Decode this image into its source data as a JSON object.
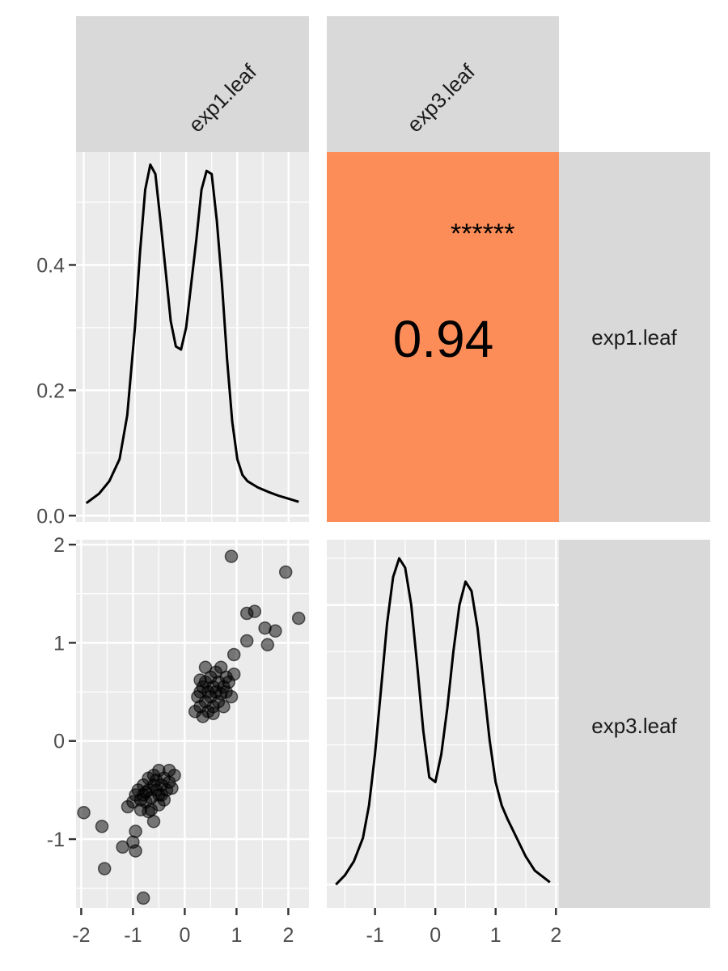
{
  "chart_data": {
    "type": "scatter",
    "variables": [
      "exp1.leaf",
      "exp3.leaf"
    ],
    "colors": {
      "strip": "#d9d9d9",
      "panel": "#ebebeb",
      "grid": "#ffffff",
      "correlation_fill": "#fc8d59",
      "line": "#000000",
      "point": "#000000",
      "axis_text": "#4d4d4d"
    },
    "diag_exp1": {
      "xlim": [
        -2.15,
        2.4
      ],
      "ylim": [
        -0.01,
        0.58
      ],
      "yticks": [
        "0.0",
        "0.2",
        "0.4"
      ],
      "yticks_values": [
        0,
        0.2,
        0.4
      ],
      "xgrid": [
        -2,
        -1,
        0,
        1,
        2
      ],
      "x": [
        -1.95,
        -1.7,
        -1.5,
        -1.3,
        -1.15,
        -1.0,
        -0.9,
        -0.8,
        -0.7,
        -0.6,
        -0.5,
        -0.4,
        -0.3,
        -0.2,
        -0.1,
        0.0,
        0.1,
        0.2,
        0.3,
        0.4,
        0.5,
        0.6,
        0.7,
        0.8,
        0.9,
        1.0,
        1.1,
        1.2,
        1.4,
        1.6,
        1.8,
        2.0,
        2.2
      ],
      "y": [
        0.02,
        0.035,
        0.055,
        0.09,
        0.16,
        0.3,
        0.42,
        0.52,
        0.56,
        0.545,
        0.47,
        0.39,
        0.31,
        0.27,
        0.265,
        0.3,
        0.37,
        0.44,
        0.52,
        0.55,
        0.545,
        0.47,
        0.37,
        0.25,
        0.15,
        0.09,
        0.065,
        0.055,
        0.045,
        0.038,
        0.032,
        0.027,
        0.022
      ]
    },
    "correlation": {
      "value": "0.94",
      "stars": "******"
    },
    "scatter": {
      "xlim": [
        -2.1,
        2.4
      ],
      "ylim": [
        -1.7,
        2.05
      ],
      "xticks": [
        "-2",
        "-1",
        "0",
        "1",
        "2"
      ],
      "xticks_values": [
        -2,
        -1,
        0,
        1,
        2
      ],
      "yticks": [
        "-1",
        "0",
        "1",
        "2"
      ],
      "yticks_values": [
        -1,
        0,
        1,
        2
      ],
      "points": [
        [
          -1.95,
          -0.73
        ],
        [
          -1.6,
          -0.87
        ],
        [
          -1.55,
          -1.3
        ],
        [
          -1.2,
          -1.08
        ],
        [
          -1.0,
          -1.03
        ],
        [
          -0.95,
          -0.92
        ],
        [
          -0.95,
          -1.12
        ],
        [
          -0.8,
          -1.6
        ],
        [
          -1.1,
          -0.67
        ],
        [
          -0.6,
          -0.82
        ],
        [
          -1.0,
          -0.62
        ],
        [
          -0.95,
          -0.55
        ],
        [
          -0.9,
          -0.5
        ],
        [
          -0.85,
          -0.6
        ],
        [
          -0.8,
          -0.55
        ],
        [
          -0.8,
          -0.45
        ],
        [
          -0.75,
          -0.62
        ],
        [
          -0.7,
          -0.5
        ],
        [
          -0.7,
          -0.38
        ],
        [
          -0.65,
          -0.58
        ],
        [
          -0.6,
          -0.45
        ],
        [
          -0.6,
          -0.35
        ],
        [
          -0.55,
          -0.5
        ],
        [
          -0.55,
          -0.4
        ],
        [
          -0.5,
          -0.55
        ],
        [
          -0.5,
          -0.3
        ],
        [
          -0.45,
          -0.45
        ],
        [
          -0.4,
          -0.38
        ],
        [
          -0.35,
          -0.5
        ],
        [
          -0.3,
          -0.42
        ],
        [
          -0.3,
          -0.3
        ],
        [
          -0.25,
          -0.48
        ],
        [
          -0.2,
          -0.35
        ],
        [
          -0.85,
          -0.7
        ],
        [
          -0.7,
          -0.72
        ],
        [
          -0.65,
          -0.7
        ],
        [
          -0.4,
          -0.6
        ],
        [
          -0.5,
          -0.65
        ],
        [
          -0.75,
          -0.52
        ],
        [
          -0.45,
          -0.55
        ],
        [
          0.2,
          0.3
        ],
        [
          0.25,
          0.45
        ],
        [
          0.3,
          0.35
        ],
        [
          0.3,
          0.5
        ],
        [
          0.35,
          0.25
        ],
        [
          0.35,
          0.55
        ],
        [
          0.4,
          0.4
        ],
        [
          0.4,
          0.6
        ],
        [
          0.45,
          0.3
        ],
        [
          0.45,
          0.5
        ],
        [
          0.5,
          0.45
        ],
        [
          0.5,
          0.65
        ],
        [
          0.55,
          0.35
        ],
        [
          0.55,
          0.55
        ],
        [
          0.6,
          0.5
        ],
        [
          0.6,
          0.7
        ],
        [
          0.65,
          0.4
        ],
        [
          0.65,
          0.6
        ],
        [
          0.7,
          0.48
        ],
        [
          0.7,
          0.75
        ],
        [
          0.75,
          0.35
        ],
        [
          0.75,
          0.55
        ],
        [
          0.8,
          0.5
        ],
        [
          0.8,
          0.65
        ],
        [
          0.85,
          0.6
        ],
        [
          0.9,
          0.45
        ],
        [
          0.95,
          0.68
        ],
        [
          0.4,
          0.75
        ],
        [
          0.3,
          0.62
        ],
        [
          0.55,
          0.28
        ],
        [
          0.9,
          1.88
        ],
        [
          0.95,
          0.88
        ],
        [
          1.2,
          1.02
        ],
        [
          1.2,
          1.3
        ],
        [
          1.35,
          1.32
        ],
        [
          1.55,
          1.15
        ],
        [
          1.6,
          0.98
        ],
        [
          1.75,
          1.12
        ],
        [
          1.95,
          1.72
        ],
        [
          2.2,
          1.25
        ]
      ]
    },
    "diag_exp3": {
      "xlim": [
        -1.8,
        2.05
      ],
      "ylim": [
        -0.05,
        0.74
      ],
      "xticks": [
        "-1",
        "0",
        "1",
        "2"
      ],
      "xticks_values": [
        -1,
        0,
        1,
        2
      ],
      "x": [
        -1.65,
        -1.5,
        -1.35,
        -1.2,
        -1.1,
        -1.0,
        -0.9,
        -0.8,
        -0.7,
        -0.6,
        -0.5,
        -0.4,
        -0.3,
        -0.2,
        -0.1,
        0.0,
        0.1,
        0.2,
        0.3,
        0.4,
        0.5,
        0.6,
        0.7,
        0.8,
        0.9,
        1.0,
        1.1,
        1.2,
        1.35,
        1.5,
        1.65,
        1.8,
        1.9
      ],
      "y": [
        0.0,
        0.02,
        0.05,
        0.1,
        0.17,
        0.28,
        0.42,
        0.56,
        0.66,
        0.7,
        0.68,
        0.6,
        0.47,
        0.33,
        0.23,
        0.22,
        0.28,
        0.38,
        0.5,
        0.6,
        0.65,
        0.63,
        0.55,
        0.43,
        0.31,
        0.22,
        0.17,
        0.14,
        0.1,
        0.06,
        0.03,
        0.015,
        0.005
      ]
    }
  }
}
